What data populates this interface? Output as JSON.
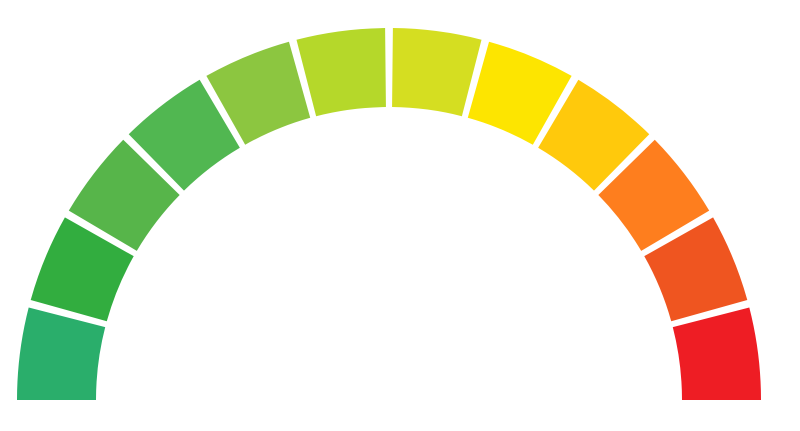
{
  "gauge": {
    "segments": [
      {
        "id": "segment-1",
        "color": "#2AAE6B"
      },
      {
        "id": "segment-2",
        "color": "#32AD3F"
      },
      {
        "id": "segment-3",
        "color": "#57B54A"
      },
      {
        "id": "segment-4",
        "color": "#51B751"
      },
      {
        "id": "segment-5",
        "color": "#8CC640"
      },
      {
        "id": "segment-6",
        "color": "#B5D82A"
      },
      {
        "id": "segment-7",
        "color": "#D5DE21"
      },
      {
        "id": "segment-8",
        "color": "#FDE500"
      },
      {
        "id": "segment-9",
        "color": "#FFC90C"
      },
      {
        "id": "segment-10",
        "color": "#FE7E1E"
      },
      {
        "id": "segment-11",
        "color": "#EF5520"
      },
      {
        "id": "segment-12",
        "color": "#EE1D24"
      }
    ],
    "style": {
      "background": "#ffffff",
      "gap_color": "#ffffff"
    }
  }
}
